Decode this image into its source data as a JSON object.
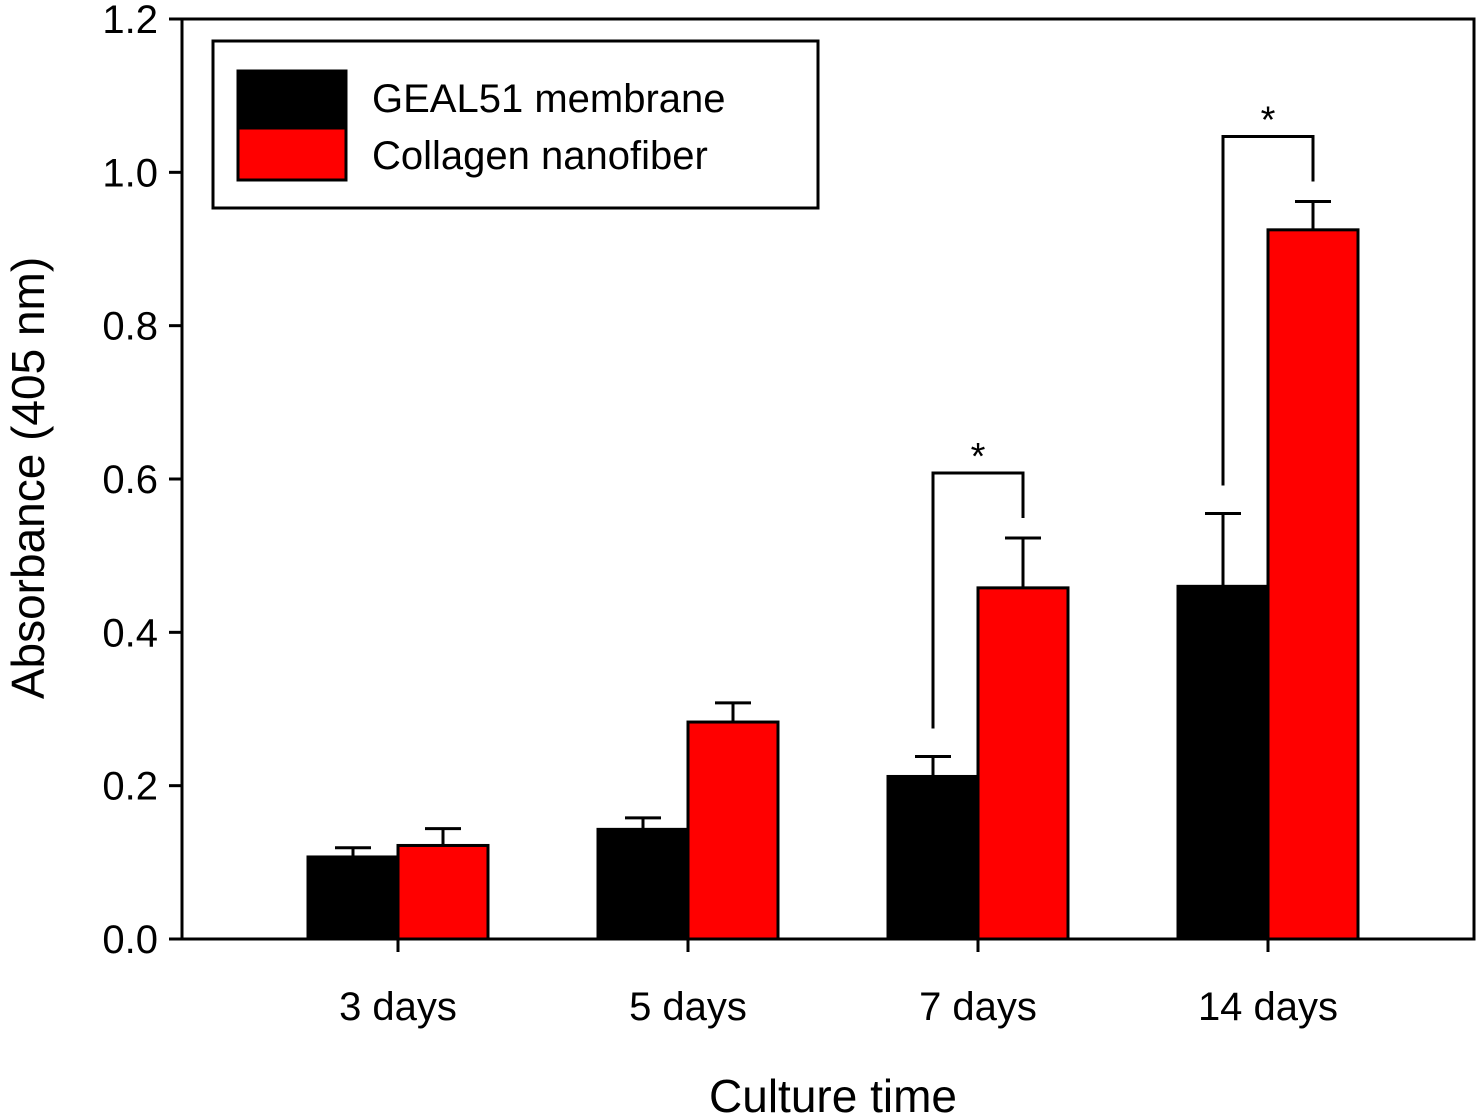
{
  "chart_data": {
    "type": "bar",
    "categories": [
      "3 days",
      "5 days",
      "7 days",
      "14 days"
    ],
    "series": [
      {
        "name": "GEAL51 membrane",
        "color": "#000000",
        "values": [
          0.107,
          0.143,
          0.212,
          0.46
        ],
        "errors": [
          0.012,
          0.015,
          0.026,
          0.095
        ]
      },
      {
        "name": "Collagen nanofiber",
        "color": "#ff0000",
        "values": [
          0.122,
          0.283,
          0.458,
          0.925
        ],
        "errors": [
          0.022,
          0.025,
          0.065,
          0.037
        ]
      }
    ],
    "xlabel": "Culture time",
    "ylabel": "Absorbance (405 nm)",
    "ylim": [
      0,
      1.2
    ],
    "yticks": [
      "0.0",
      "0.2",
      "0.4",
      "0.6",
      "0.8",
      "1.0",
      "1.2"
    ],
    "legend_position": "top-left",
    "grid": false,
    "significance": [
      {
        "category": "7 days",
        "label": "*"
      },
      {
        "category": "14 days",
        "label": "*"
      }
    ]
  }
}
